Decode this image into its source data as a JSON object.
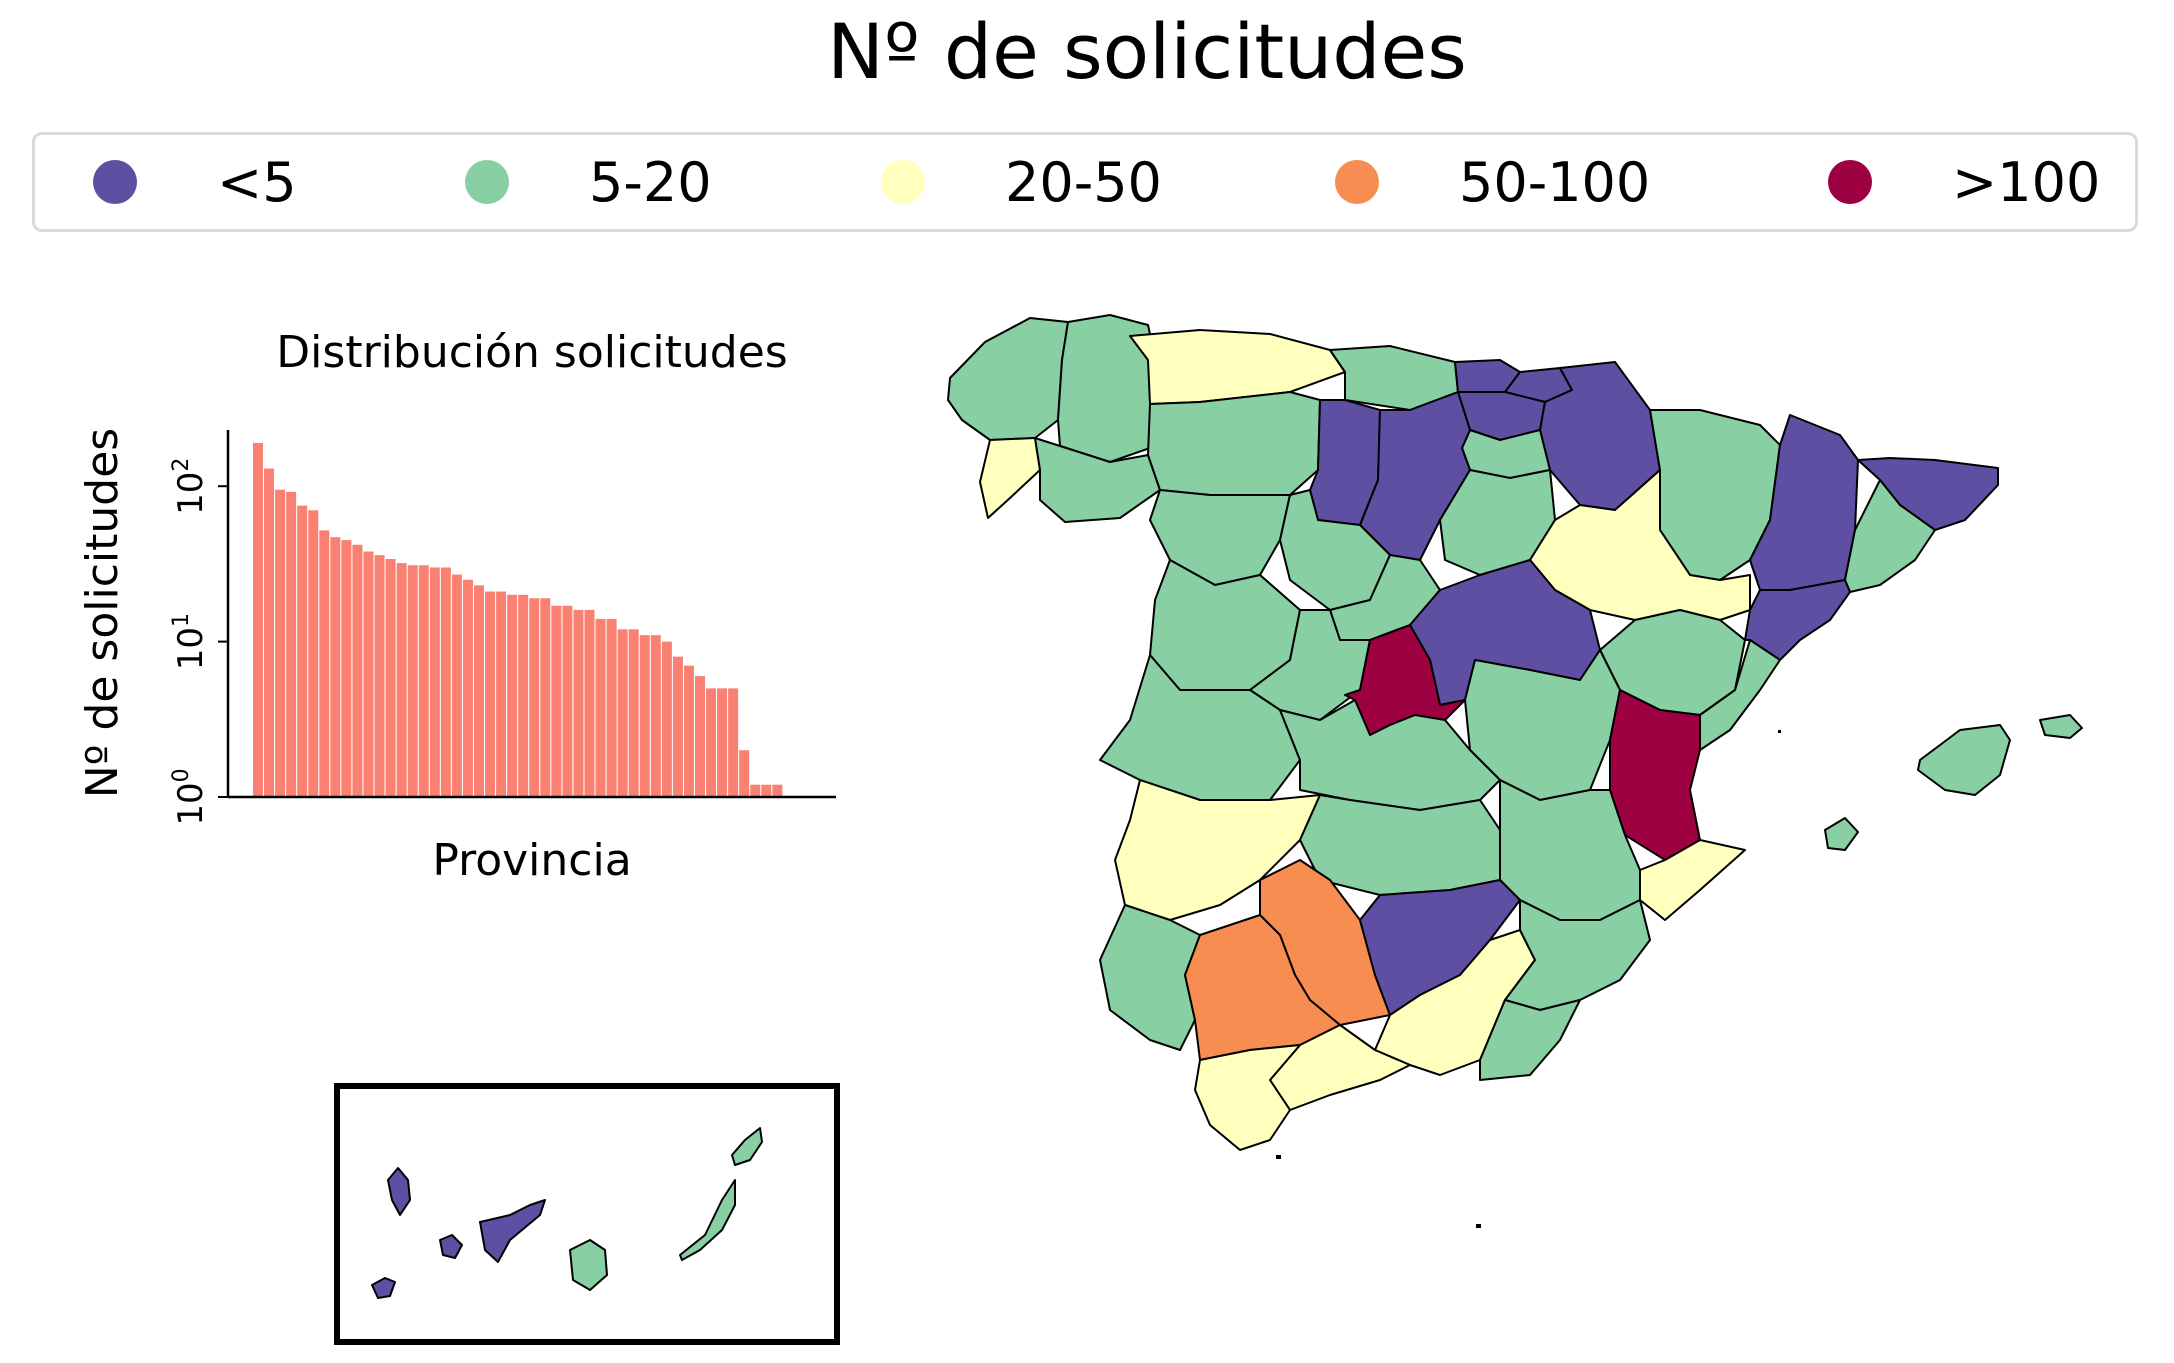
{
  "title": "Nº de solicitudes",
  "legend": {
    "items": [
      {
        "label": "<5",
        "color": "#5e4fa2"
      },
      {
        "label": "5-20",
        "color": "#88cfa4"
      },
      {
        "label": "20-50",
        "color": "#ffffbe"
      },
      {
        "label": "50-100",
        "color": "#f88d52"
      },
      {
        "label": ">100",
        "color": "#9e0142"
      }
    ]
  },
  "chart_data": {
    "type": "bar",
    "title": "Distribución solicitudes",
    "xlabel": "Provincia",
    "ylabel": "Nº de solicitudes",
    "yscale": "log",
    "ylim": [
      1,
      230
    ],
    "yticks": [
      {
        "value": 1,
        "base": "10",
        "exp": "0"
      },
      {
        "value": 10,
        "base": "10",
        "exp": "1"
      },
      {
        "value": 100,
        "base": "10",
        "exp": "2"
      }
    ],
    "bar_color": "#fa8072",
    "values": [
      190,
      130,
      95,
      92,
      75,
      70,
      52,
      47,
      45,
      42,
      38,
      36,
      34,
      32,
      31,
      31,
      30,
      30,
      27,
      25,
      23,
      21,
      21,
      20,
      20,
      19,
      19,
      17,
      17,
      16,
      16,
      14,
      14,
      12,
      12,
      11,
      11,
      10,
      8,
      7,
      6,
      5,
      5,
      5,
      2,
      1.2,
      1.2,
      1.2
    ]
  },
  "map": {
    "region_colors": [
      "#5e4fa2",
      "#88cfa4",
      "#ffffbe",
      "#f88d52",
      "#9e0142"
    ]
  }
}
